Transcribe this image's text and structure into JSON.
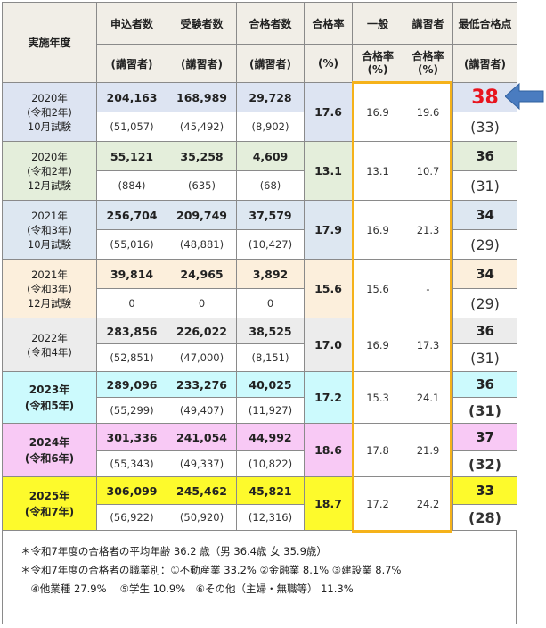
{
  "colors": {
    "header_bg": "#f1eee7",
    "highlight_box": "#f5b21a",
    "highlight_value": "#e8141e",
    "arrow": "#4a7cc0"
  },
  "header": {
    "year": "実施年度",
    "applicants": "申込者数",
    "examinees": "受験者数",
    "passers": "合格者数",
    "pass_rate": "合格率",
    "general": "一般",
    "lecture": "講習者",
    "min_score": "最低合格点",
    "lecture_sub": "(講習者)",
    "percent_sub": "(%)",
    "general_sub": "合格率\n(%)",
    "lecture_rate_sub": "合格率\n(%)"
  },
  "rows": [
    {
      "year_lines": [
        "2020年",
        "(令和2年)",
        "10月試験"
      ],
      "applicants": "204,163",
      "applicants_l": "(51,057)",
      "examinees": "168,989",
      "examinees_l": "(45,492)",
      "passers": "29,728",
      "passers_l": "(8,902)",
      "rate": "17.6",
      "general": "16.9",
      "lecture": "19.6",
      "min": "38",
      "min_l": "(33)",
      "bg": "#dde4f2",
      "bold_year": false,
      "highlight": true
    },
    {
      "year_lines": [
        "2020年",
        "(令和2年)",
        "12月試験"
      ],
      "applicants": "55,121",
      "applicants_l": "(884)",
      "examinees": "35,258",
      "examinees_l": "(635)",
      "passers": "4,609",
      "passers_l": "(68)",
      "rate": "13.1",
      "general": "13.1",
      "lecture": "10.7",
      "min": "36",
      "min_l": "(31)",
      "bg": "#e4eedb",
      "bold_year": false
    },
    {
      "year_lines": [
        "2021年",
        "(令和3年)",
        "10月試験"
      ],
      "applicants": "256,704",
      "applicants_l": "(55,016)",
      "examinees": "209,749",
      "examinees_l": "(48,881)",
      "passers": "37,579",
      "passers_l": "(10,427)",
      "rate": "17.9",
      "general": "16.9",
      "lecture": "21.3",
      "min": "34",
      "min_l": "(29)",
      "bg": "#dde7f1",
      "bold_year": false
    },
    {
      "year_lines": [
        "2021年",
        "(令和3年)",
        "12月試験"
      ],
      "applicants": "39,814",
      "applicants_l": "0",
      "examinees": "24,965",
      "examinees_l": "0",
      "passers": "3,892",
      "passers_l": "0",
      "rate": "15.6",
      "general": "15.6",
      "lecture": "-",
      "min": "34",
      "min_l": "(29)",
      "bg": "#fcefdc",
      "bold_year": false
    },
    {
      "year_lines": [
        "2022年",
        "(令和4年)"
      ],
      "applicants": "283,856",
      "applicants_l": "(52,851)",
      "examinees": "226,022",
      "examinees_l": "(47,000)",
      "passers": "38,525",
      "passers_l": "(8,151)",
      "rate": "17.0",
      "general": "16.9",
      "lecture": "17.3",
      "min": "36",
      "min_l": "(31)",
      "bg": "#ececec",
      "bold_year": false
    },
    {
      "year_lines": [
        "2023年",
        "(令和5年)"
      ],
      "applicants": "289,096",
      "applicants_l": "(55,299)",
      "examinees": "233,276",
      "examinees_l": "(49,407)",
      "passers": "40,025",
      "passers_l": "(11,927)",
      "rate": "17.2",
      "general": "15.3",
      "lecture": "24.1",
      "min": "36",
      "min_l": "(31)",
      "bg": "#ccfafd",
      "bold_year": true
    },
    {
      "year_lines": [
        "2024年",
        "(令和6年)"
      ],
      "applicants": "301,336",
      "applicants_l": "(55,343)",
      "examinees": "241,054",
      "examinees_l": "(49,337)",
      "passers": "44,992",
      "passers_l": "(10,822)",
      "rate": "18.6",
      "general": "17.8",
      "lecture": "21.9",
      "min": "37",
      "min_l": "(32)",
      "bg": "#f8c9f5",
      "bold_year": true
    },
    {
      "year_lines": [
        "2025年",
        "(令和7年)"
      ],
      "applicants": "306,099",
      "applicants_l": "(56,922)",
      "examinees": "245,462",
      "examinees_l": "(50,920)",
      "passers": "45,821",
      "passers_l": "(12,316)",
      "rate": "18.7",
      "general": "17.2",
      "lecture": "24.2",
      "min": "33",
      "min_l": "(28)",
      "bg": "#fdfa2c",
      "bold_year": true
    }
  ],
  "notes": [
    "＊令和7年度の合格者の平均年齢 36.2 歳（男 36.4歳 女 35.9歳）",
    "＊令和7年度の合格者の職業別：①不動産業 33.2% ②金融業 8.1% ③建設業 8.7%",
    "　④他業種 27.9%　 ⑤学生 10.9%　⑥その他（主婦・無職等） 11.3%"
  ]
}
